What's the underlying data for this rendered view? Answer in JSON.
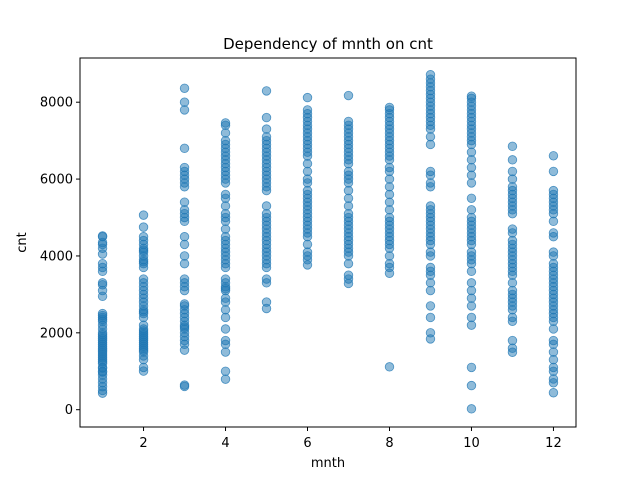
{
  "chart_data": {
    "type": "scatter",
    "title": "Dependency of mnth on cnt",
    "xlabel": "mnth",
    "ylabel": "cnt",
    "xlim": [
      0.45,
      12.55
    ],
    "ylim": [
      -450,
      9150
    ],
    "xticks": [
      2,
      4,
      6,
      8,
      10,
      12
    ],
    "yticks": [
      0,
      2000,
      4000,
      6000,
      8000
    ],
    "grid": false,
    "legend": "none",
    "marker_color": "#1f77b4",
    "marker_alpha": 0.5,
    "points_by_month": [
      {
        "x": 1,
        "y": [
          431,
          500,
          600,
          700,
          801,
          900,
          981,
          1000,
          1080,
          1100,
          1200,
          1250,
          1300,
          1350,
          1400,
          1450,
          1500,
          1550,
          1600,
          1650,
          1700,
          1750,
          1800,
          1850,
          1900,
          1950,
          2000,
          2100,
          2200,
          2300,
          2350,
          2400,
          2450,
          2500,
          2950,
          3100,
          3250,
          3300,
          3600,
          3700,
          3800,
          4050,
          4200,
          4300,
          4350,
          4500,
          4521
        ]
      },
      {
        "x": 2,
        "y": [
          1005,
          1100,
          1300,
          1400,
          1500,
          1550,
          1600,
          1650,
          1700,
          1750,
          1800,
          1850,
          1900,
          1950,
          2000,
          2050,
          2100,
          2200,
          2400,
          2500,
          2550,
          2600,
          2700,
          2800,
          2900,
          3000,
          3100,
          3200,
          3300,
          3400,
          3700,
          3800,
          3850,
          3900,
          4000,
          4100,
          4150,
          4200,
          4300,
          4400,
          4500,
          4750,
          5062
        ]
      },
      {
        "x": 3,
        "y": [
          605,
          640,
          1550,
          1700,
          1800,
          1900,
          2000,
          2100,
          2150,
          2200,
          2300,
          2400,
          2500,
          2600,
          2700,
          2750,
          3100,
          3200,
          3300,
          3400,
          3800,
          4000,
          4300,
          4500,
          4900,
          5000,
          5100,
          5200,
          5400,
          5800,
          5900,
          6000,
          6100,
          6200,
          6300,
          6800,
          7800,
          8000,
          8362
        ]
      },
      {
        "x": 4,
        "y": [
          795,
          1000,
          1500,
          1700,
          1800,
          2100,
          2400,
          2600,
          2800,
          2900,
          3100,
          3150,
          3200,
          3300,
          3400,
          3700,
          3800,
          3900,
          4000,
          4100,
          4200,
          4300,
          4400,
          4500,
          4700,
          4900,
          5000,
          5100,
          5300,
          5500,
          5600,
          5900,
          6000,
          6100,
          6200,
          6300,
          6400,
          6500,
          6600,
          6700,
          6800,
          6900,
          7000,
          7200,
          7400,
          7460
        ]
      },
      {
        "x": 5,
        "y": [
          2633,
          2800,
          3300,
          3400,
          3700,
          3800,
          3900,
          4000,
          4100,
          4200,
          4300,
          4400,
          4500,
          4600,
          4700,
          4800,
          4900,
          5000,
          5100,
          5300,
          5700,
          5800,
          5900,
          6000,
          6100,
          6200,
          6300,
          6400,
          6500,
          6600,
          6700,
          6800,
          6900,
          7000,
          7100,
          7300,
          7600,
          8294
        ]
      },
      {
        "x": 6,
        "y": [
          3767,
          3900,
          4000,
          4100,
          4300,
          4500,
          4600,
          4700,
          4800,
          4900,
          5000,
          5100,
          5200,
          5300,
          5400,
          5500,
          5600,
          5700,
          5900,
          6000,
          6200,
          6400,
          6600,
          6700,
          6800,
          6900,
          7000,
          7100,
          7200,
          7300,
          7400,
          7500,
          7600,
          7700,
          7800,
          8120
        ]
      },
      {
        "x": 7,
        "y": [
          3285,
          3400,
          3500,
          3800,
          4000,
          4100,
          4200,
          4300,
          4400,
          4500,
          4600,
          4700,
          4800,
          4900,
          5000,
          5100,
          5300,
          5500,
          5700,
          5900,
          6000,
          6100,
          6200,
          6400,
          6500,
          6600,
          6700,
          6800,
          6900,
          7000,
          7100,
          7200,
          7300,
          7400,
          7500,
          8173
        ]
      },
      {
        "x": 8,
        "y": [
          1115,
          3550,
          3700,
          3800,
          4000,
          4200,
          4300,
          4400,
          4500,
          4600,
          4700,
          4800,
          4900,
          5000,
          5200,
          5400,
          5600,
          5800,
          6000,
          6200,
          6300,
          6500,
          6600,
          6700,
          6800,
          6900,
          7000,
          7100,
          7200,
          7300,
          7400,
          7500,
          7600,
          7700,
          7800,
          7865
        ]
      },
      {
        "x": 9,
        "y": [
          1842,
          2000,
          2400,
          2700,
          3100,
          3300,
          3500,
          3600,
          3700,
          4000,
          4100,
          4300,
          4400,
          4500,
          4600,
          4700,
          4800,
          4900,
          5000,
          5100,
          5200,
          5300,
          5800,
          5900,
          6100,
          6200,
          6900,
          7100,
          7300,
          7400,
          7500,
          7600,
          7700,
          7800,
          7900,
          8000,
          8100,
          8200,
          8300,
          8400,
          8500,
          8600,
          8714
        ]
      },
      {
        "x": 10,
        "y": [
          22,
          627,
          1100,
          2200,
          2400,
          2700,
          2900,
          3100,
          3300,
          3600,
          3800,
          3900,
          4000,
          4100,
          4300,
          4400,
          4500,
          4600,
          4700,
          4800,
          4900,
          5000,
          5200,
          5500,
          5900,
          6100,
          6300,
          6500,
          6700,
          6900,
          7000,
          7100,
          7200,
          7300,
          7400,
          7500,
          7600,
          7700,
          7800,
          7900,
          8000,
          8100,
          8156
        ]
      },
      {
        "x": 11,
        "y": [
          1495,
          1600,
          1800,
          2300,
          2400,
          2600,
          2700,
          2800,
          2900,
          3000,
          3100,
          3300,
          3500,
          3600,
          3700,
          3800,
          3900,
          4000,
          4100,
          4200,
          4300,
          4400,
          4600,
          4700,
          5100,
          5200,
          5300,
          5400,
          5500,
          5600,
          5700,
          5800,
          6000,
          6200,
          6500,
          6852
        ]
      },
      {
        "x": 12,
        "y": [
          441,
          700,
          800,
          1000,
          1100,
          1300,
          1500,
          1700,
          1800,
          2100,
          2300,
          2400,
          2500,
          2600,
          2700,
          2800,
          2900,
          3000,
          3100,
          3200,
          3300,
          3400,
          3500,
          3600,
          3700,
          3800,
          4000,
          4100,
          4500,
          4600,
          4900,
          5100,
          5200,
          5300,
          5400,
          5500,
          5600,
          5700,
          6200,
          6606
        ]
      }
    ]
  }
}
